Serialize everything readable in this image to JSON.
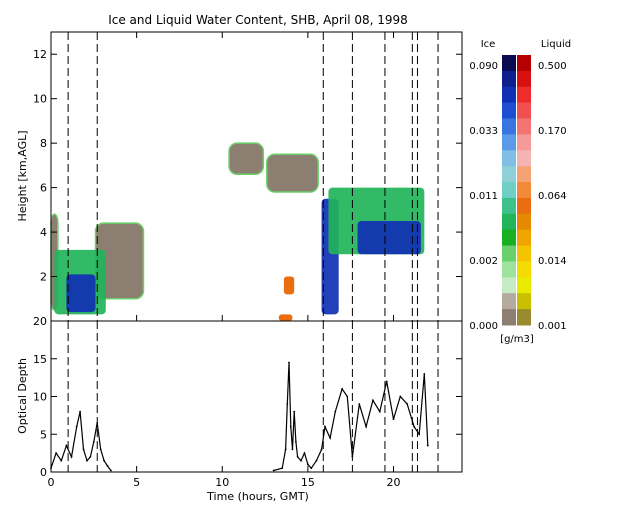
{
  "chart_data": [
    {
      "type": "heatmap",
      "title": "Ice and Liquid Water Content, SHB, April 08, 1998",
      "ylabel": "Height [km,AGL]",
      "xlim": [
        0,
        24
      ],
      "ylim": [
        0,
        13
      ],
      "yticks": [
        2,
        4,
        6,
        8,
        10,
        12
      ],
      "event_lines_hours": [
        1.0,
        2.7,
        15.9,
        17.6,
        19.5,
        21.1,
        21.4,
        22.6
      ],
      "ice_patches": [
        {
          "t": [
            0.2,
            3.2
          ],
          "h": [
            0.3,
            3.2
          ],
          "level": "mid"
        },
        {
          "t": [
            0.9,
            2.6
          ],
          "h": [
            0.4,
            2.1
          ],
          "level": "high"
        },
        {
          "t": [
            15.8,
            16.8
          ],
          "h": [
            0.3,
            5.5
          ],
          "level": "high"
        },
        {
          "t": [
            16.2,
            21.8
          ],
          "h": [
            3.0,
            6.0
          ],
          "level": "mid"
        },
        {
          "t": [
            17.9,
            21.6
          ],
          "h": [
            3.0,
            4.5
          ],
          "level": "high"
        }
      ],
      "low_content_patches": [
        {
          "t": [
            0.0,
            0.4
          ],
          "h": [
            0.5,
            4.8
          ]
        },
        {
          "t": [
            2.6,
            5.4
          ],
          "h": [
            1.0,
            4.4
          ]
        },
        {
          "t": [
            10.4,
            12.4
          ],
          "h": [
            6.6,
            8.0
          ]
        },
        {
          "t": [
            12.6,
            15.6
          ],
          "h": [
            5.8,
            7.5
          ]
        }
      ],
      "liquid_patches": [
        {
          "t": [
            13.6,
            14.2
          ],
          "h": [
            1.2,
            2.0
          ]
        },
        {
          "t": [
            13.3,
            14.1
          ],
          "h": [
            0.0,
            0.3
          ]
        }
      ]
    },
    {
      "type": "line",
      "ylabel": "Optical Depth",
      "xlabel": "Time (hours, GMT)",
      "xlim": [
        0,
        24
      ],
      "ylim": [
        0,
        20
      ],
      "xticks": [
        0,
        5,
        10,
        15,
        20
      ],
      "yticks": [
        0,
        5,
        10,
        15,
        20
      ],
      "segments": [
        {
          "x": [
            0.0,
            0.3,
            0.6,
            0.9,
            1.2,
            1.5,
            1.7,
            1.9,
            2.1,
            2.3,
            2.5,
            2.7,
            2.9,
            3.1,
            3.3,
            3.5
          ],
          "y": [
            0.5,
            2.5,
            1.5,
            3.5,
            2.0,
            6.0,
            8.0,
            3.0,
            1.5,
            2.0,
            4.0,
            6.5,
            3.0,
            1.5,
            0.8,
            0.2
          ]
        },
        {
          "x": [
            13.0,
            13.5,
            13.7,
            13.8,
            13.9,
            14.0,
            14.1,
            14.2,
            14.3,
            14.4,
            14.6,
            14.8,
            15.0,
            15.2,
            15.5,
            15.8,
            16.0,
            16.3,
            16.6,
            17.0,
            17.3,
            17.6,
            18.0,
            18.4,
            18.8,
            19.2,
            19.6,
            20.0,
            20.4,
            20.8,
            21.2,
            21.5,
            21.8,
            22.0
          ],
          "y": [
            0.2,
            0.5,
            3.0,
            9.0,
            14.5,
            6.0,
            3.0,
            8.0,
            4.0,
            2.0,
            1.5,
            2.5,
            1.0,
            0.5,
            1.5,
            3.0,
            6.0,
            4.5,
            8.0,
            11.0,
            10.0,
            2.0,
            9.0,
            6.0,
            9.5,
            8.0,
            12.0,
            7.0,
            10.0,
            9.0,
            6.0,
            5.0,
            13.0,
            3.5
          ]
        }
      ]
    }
  ],
  "colorbar": {
    "ice_label": "Ice",
    "liquid_label": "Liquid",
    "unit_label": "[g/m3]",
    "ice_ticks": [
      "0.090",
      "0.033",
      "0.011",
      "0.002",
      "0.000"
    ],
    "liquid_ticks": [
      "0.500",
      "0.170",
      "0.064",
      "0.014",
      "0.001"
    ],
    "ice_colors": [
      "#0a0a50",
      "#0d1f8c",
      "#1030b4",
      "#1e4fd2",
      "#3a74e0",
      "#5a9ae6",
      "#7fbfe6",
      "#8fd0d8",
      "#6ed0c4",
      "#3ec08a",
      "#22b45a",
      "#18b020",
      "#6ad06a",
      "#9ee29e",
      "#c6ecc6",
      "#b4aaa0",
      "#8c7f72"
    ],
    "liquid_colors": [
      "#b40000",
      "#d81010",
      "#ee2c2c",
      "#f25050",
      "#f47474",
      "#f59a9a",
      "#f5b4b4",
      "#f4a474",
      "#f28a3a",
      "#ea6e10",
      "#e58a00",
      "#f0a400",
      "#f4c400",
      "#f4dc00",
      "#eaea00",
      "#c8c000",
      "#9a8a30"
    ]
  }
}
